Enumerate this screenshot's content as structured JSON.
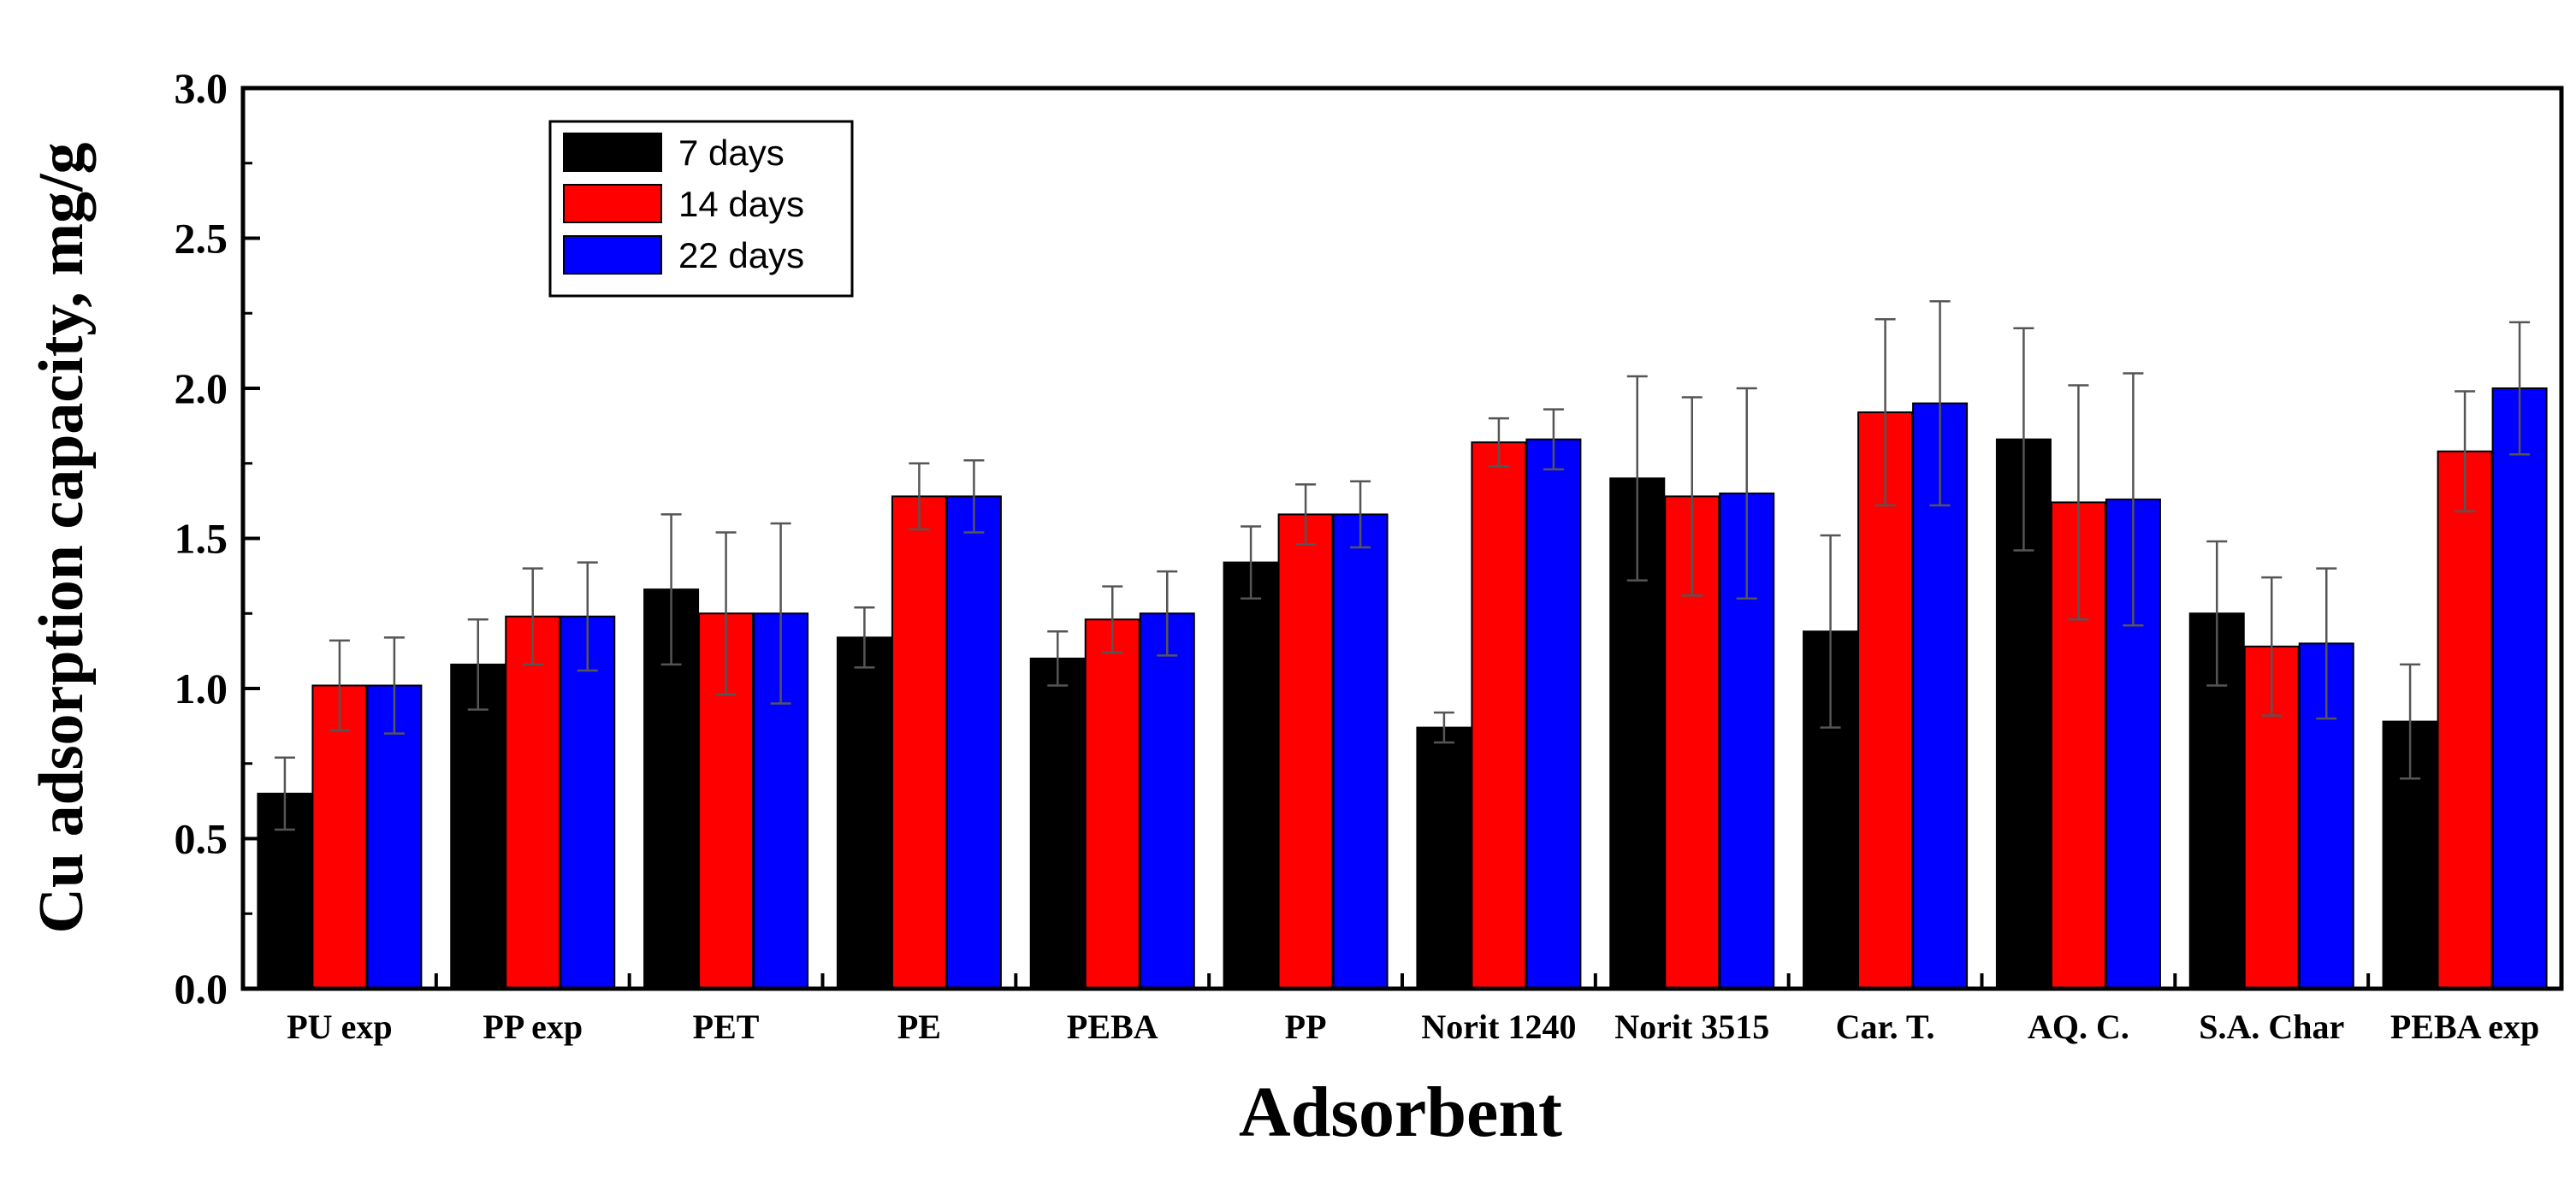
{
  "chart_data": {
    "type": "bar",
    "title": "",
    "xlabel": "Adsorbent",
    "ylabel": "Cu adsorption capacity, mg/g",
    "ylim": [
      0,
      3.0
    ],
    "yticks": [
      "0.0",
      "0.5",
      "1.0",
      "1.5",
      "2.0",
      "2.5",
      "3.0"
    ],
    "grid": false,
    "legend_position": "top-left",
    "categories": [
      "PU exp",
      "PP exp",
      "PET",
      "PE",
      "PEBA",
      "PP",
      "Norit 1240",
      "Norit 3515",
      "Car. T.",
      "AQ. C.",
      "S.A. Char",
      "PEBA exp"
    ],
    "series": [
      {
        "name": "7 days",
        "color": "#000000",
        "values": [
          0.65,
          1.08,
          1.33,
          1.17,
          1.1,
          1.42,
          0.87,
          1.7,
          1.19,
          1.83,
          1.25,
          0.89
        ],
        "errors": [
          0.12,
          0.15,
          0.25,
          0.1,
          0.09,
          0.12,
          0.05,
          0.34,
          0.32,
          0.37,
          0.24,
          0.19
        ]
      },
      {
        "name": "14 days",
        "color": "#ff0000",
        "values": [
          1.01,
          1.24,
          1.25,
          1.64,
          1.23,
          1.58,
          1.82,
          1.64,
          1.92,
          1.62,
          1.14,
          1.79
        ],
        "errors": [
          0.15,
          0.16,
          0.27,
          0.11,
          0.11,
          0.1,
          0.08,
          0.33,
          0.31,
          0.39,
          0.23,
          0.2
        ]
      },
      {
        "name": "22 days",
        "color": "#0000ff",
        "values": [
          1.01,
          1.24,
          1.25,
          1.64,
          1.25,
          1.58,
          1.83,
          1.65,
          1.95,
          1.63,
          1.15,
          2.0
        ],
        "errors": [
          0.16,
          0.18,
          0.3,
          0.12,
          0.14,
          0.11,
          0.1,
          0.35,
          0.34,
          0.42,
          0.25,
          0.22
        ]
      }
    ]
  }
}
